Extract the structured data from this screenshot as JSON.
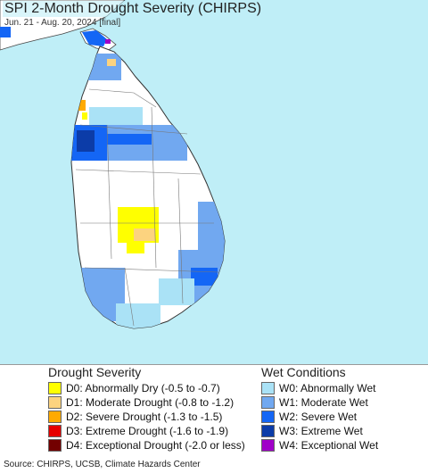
{
  "header": {
    "title": "SPI 2-Month Drought Severity (CHIRPS)",
    "subtitle": "Jun. 21 - Aug. 20, 2024 [final]"
  },
  "map": {
    "ocean_color": "#bfeef7",
    "land_color": "#ffffff",
    "neighbor_land": "India (partial, top-left)"
  },
  "legend": {
    "drought": {
      "heading": "Drought Severity",
      "items": [
        {
          "label": "D0: Abnormally Dry (-0.5 to -0.7)",
          "color": "#ffff00"
        },
        {
          "label": "D1: Moderate Drought (-0.8 to -1.2)",
          "color": "#fcd37f"
        },
        {
          "label": "D2: Severe Drought (-1.3 to -1.5)",
          "color": "#ffaa00"
        },
        {
          "label": "D3: Extreme Drought (-1.6 to -1.9)",
          "color": "#e60000"
        },
        {
          "label": "D4: Exceptional Drought (-2.0 or less)",
          "color": "#730000"
        }
      ]
    },
    "wet": {
      "heading": "Wet Conditions",
      "items": [
        {
          "label": "W0: Abnormally Wet",
          "color": "#aae2f6"
        },
        {
          "label": "W1: Moderate Wet",
          "color": "#71a8f0"
        },
        {
          "label": "W2: Severe Wet",
          "color": "#1466f5"
        },
        {
          "label": "W3: Extreme Wet",
          "color": "#0c3ca8"
        },
        {
          "label": "W4: Exceptional Wet",
          "color": "#a000c8"
        }
      ]
    }
  },
  "footer": {
    "source": "Source: CHIRPS, UCSB, Climate Hazards Center"
  }
}
